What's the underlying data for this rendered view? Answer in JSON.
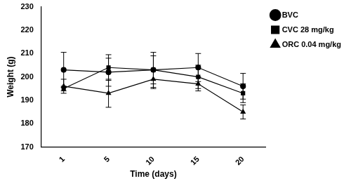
{
  "chart_data": {
    "type": "line",
    "x_label": "Time (days)",
    "y_label": "Weight (g)",
    "categories": [
      "1",
      "5",
      "10",
      "15",
      "20"
    ],
    "series": [
      {
        "name": "BVC",
        "color": "#000000",
        "marker": "circle",
        "values": [
          203,
          202,
          203,
          204,
          196
        ],
        "errors": [
          7.5,
          6,
          7.5,
          6,
          5.5
        ]
      },
      {
        "name": "CVC 28 mg/kg",
        "color": "#000000",
        "marker": "square",
        "values": [
          195,
          204,
          203,
          200,
          193
        ],
        "errors": [
          1,
          5.5,
          6,
          5,
          4
        ]
      },
      {
        "name": "ORC 0.04 mg/kg",
        "color": "#000000",
        "marker": "triangle",
        "values": [
          196,
          193,
          199,
          197,
          185
        ],
        "errors": [
          3,
          6,
          4,
          3,
          3
        ]
      }
    ],
    "ylim": [
      170,
      230
    ],
    "yticks": [
      170,
      180,
      190,
      200,
      210,
      220,
      230
    ],
    "grid": false,
    "legend": "right"
  }
}
